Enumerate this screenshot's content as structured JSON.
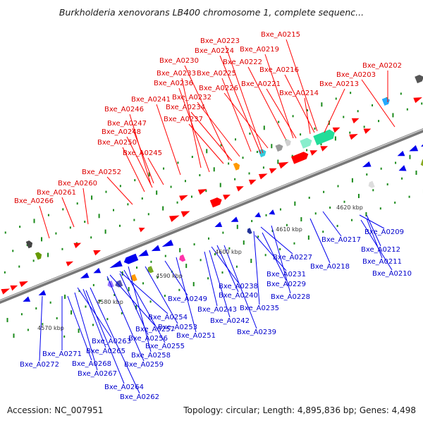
{
  "title": "Burkholderia xenovorans LB400 chromosome 1, complete sequenc...",
  "footer": {
    "accession": "Accession: NC_007951",
    "summary": "Topology: circular; Length: 4,895,836 bp; Genes: 4,498"
  },
  "colors": {
    "forward": "#ff0000",
    "reverse": "#0000ee",
    "forward_label": "#dd0000",
    "reverse_label": "#0000cc",
    "backbone": "#888888",
    "tick": "#1a8a1a"
  },
  "scale_labels": [
    "4570 kbp",
    "4580 kbp",
    "4590 kbp",
    "4600 kbp",
    "4610 kbp",
    "4620 kbp"
  ],
  "top_labels": [
    "Bxe_A0215",
    "Bxe_A0223",
    "Bxe_A0224",
    "Bxe_A0219",
    "Bxe_A0230",
    "Bxe_A0222",
    "Bxe_A0216",
    "Bxe_A0233",
    "Bxe_A0225",
    "Bxe_A0202",
    "Bxe_A0203",
    "Bxe_A0236",
    "Bxe_A0226",
    "Bxe_A0221",
    "Bxe_A0213",
    "Bxe_A0214",
    "Bxe_A0241",
    "Bxe_A0232",
    "Bxe_A0246",
    "Bxe_A0234",
    "Bxe_A0237",
    "Bxe_A0247",
    "Bxe_A0248",
    "Bxe_A0250",
    "Bxe_A0245",
    "Bxe_A0252",
    "Bxe_A0260",
    "Bxe_A0261",
    "Bxe_A0266"
  ],
  "bottom_labels": [
    "Bxe_A0209",
    "Bxe_A0217",
    "Bxe_A0212",
    "Bxe_A0227",
    "Bxe_A0211",
    "Bxe_A0218",
    "Bxe_A0210",
    "Bxe_A0231",
    "Bxe_A0238",
    "Bxe_A0229",
    "Bxe_A0240",
    "Bxe_A0228",
    "Bxe_A0249",
    "Bxe_A0235",
    "Bxe_A0243",
    "Bxe_A0242",
    "Bxe_A0239",
    "Bxe_A0254",
    "Bxe_A0253",
    "Bxe_A0257",
    "Bxe_A0251",
    "Bxe_A0256",
    "Bxe_A0263",
    "Bxe_A0255",
    "Bxe_A0265",
    "Bxe_A0258",
    "Bxe_A0271",
    "Bxe_A0259",
    "Bxe_A0268",
    "Bxe_A0272",
    "Bxe_A0267",
    "Bxe_A0264",
    "Bxe_A0262"
  ]
}
